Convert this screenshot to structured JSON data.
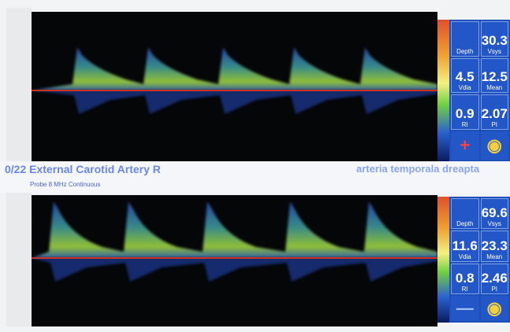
{
  "banner": {
    "title": "0/22 External Carotid Artery R",
    "note": "arteria temporala dreapta",
    "probe": "Probe 8 MHz Continuous"
  },
  "panels": [
    {
      "cells": [
        {
          "label": "Depth"
        },
        {
          "value": "30.3",
          "label": "Vsys"
        },
        {
          "value": "4.5",
          "label": "Vdia"
        },
        {
          "value": "12.5",
          "label": "Mean"
        },
        {
          "value": "0.9",
          "label": "RI"
        },
        {
          "value": "2.07",
          "label": "PI"
        }
      ]
    },
    {
      "cells": [
        {
          "label": "Depth"
        },
        {
          "value": "69.6",
          "label": "Vsys"
        },
        {
          "value": "11.6",
          "label": "Vdia"
        },
        {
          "value": "23.3",
          "label": "Mean"
        },
        {
          "value": "0.8",
          "label": "RI"
        },
        {
          "value": "2.46",
          "label": "PI"
        }
      ]
    }
  ]
}
